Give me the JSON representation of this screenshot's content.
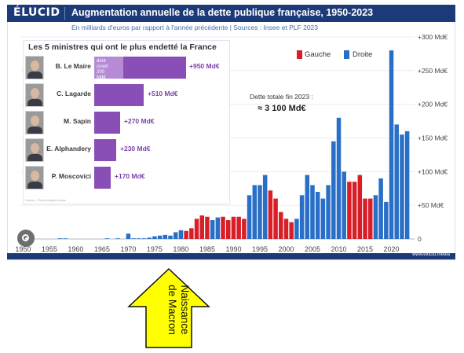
{
  "header": {
    "logo": "ÉLUCID",
    "title": "Augmentation annuelle de la dette publique française, 1950-2023",
    "subtitle": "En milliards d'euros par rapport à l'année précédente  |  Sources : Insee et PLF 2023"
  },
  "legend": {
    "left": "Gauche",
    "right": "Droite"
  },
  "total": {
    "label": "Dette totale fin 2023 :",
    "value": "≈ 3 100 Md€"
  },
  "footer": "www.elucid.media",
  "inset": {
    "title": "Les 5 ministres qui ont le plus endetté la France",
    "covid_note": "dont covid: 200 Md€",
    "source": "Source : Elucid d'après Insee",
    "ministers": [
      {
        "name": "B. Le Maire",
        "value_label": "+950 Md€",
        "value": 950,
        "covid": 200
      },
      {
        "name": "C. Lagarde",
        "value_label": "+510 Md€",
        "value": 510
      },
      {
        "name": "M. Sapin",
        "value_label": "+270 Md€",
        "value": 270
      },
      {
        "name": "E. Alphandery",
        "value_label": "+230 Md€",
        "value": 230
      },
      {
        "name": "P. Moscovici",
        "value_label": "+170 Md€",
        "value": 170
      }
    ]
  },
  "annotation": {
    "text_line1": "Naissance",
    "text_line2": "de Macron",
    "arrow_color": "#ffff00"
  },
  "colors": {
    "gauche": "#d81e27",
    "droite": "#2a6fc7",
    "header": "#1d3a78",
    "inset_bar": "#8a4fb6"
  },
  "chart_data": {
    "type": "bar",
    "title": "Augmentation annuelle de la dette publique française, 1950-2023",
    "ylabel": "Md€",
    "ylim": [
      0,
      300
    ],
    "yticks": [
      0,
      50,
      100,
      150,
      200,
      250,
      300
    ],
    "ytick_labels": [
      "0",
      "+50 Md€",
      "+100 Md€",
      "+150 Md€",
      "+200 Md€",
      "+250 Md€",
      "+300 Md€"
    ],
    "xticks": [
      1950,
      1955,
      1960,
      1965,
      1970,
      1975,
      1980,
      1985,
      1990,
      1995,
      2000,
      2005,
      2010,
      2015,
      2020
    ],
    "x": [
      1950,
      1951,
      1952,
      1953,
      1954,
      1955,
      1956,
      1957,
      1958,
      1959,
      1960,
      1961,
      1962,
      1963,
      1964,
      1965,
      1966,
      1967,
      1968,
      1969,
      1970,
      1971,
      1972,
      1973,
      1974,
      1975,
      1976,
      1977,
      1978,
      1979,
      1980,
      1981,
      1982,
      1983,
      1984,
      1985,
      1986,
      1987,
      1988,
      1989,
      1990,
      1991,
      1992,
      1993,
      1994,
      1995,
      1996,
      1997,
      1998,
      1999,
      2000,
      2001,
      2002,
      2003,
      2004,
      2005,
      2006,
      2007,
      2008,
      2009,
      2010,
      2011,
      2012,
      2013,
      2014,
      2015,
      2016,
      2017,
      2018,
      2019,
      2020,
      2021,
      2022,
      2023
    ],
    "values": [
      0,
      0,
      0,
      0,
      0,
      0,
      0,
      1,
      1,
      0,
      0,
      0,
      0,
      0,
      0,
      0,
      1,
      0,
      1,
      0,
      8,
      1,
      1,
      1,
      2,
      4,
      5,
      6,
      5,
      10,
      13,
      12,
      16,
      30,
      35,
      33,
      28,
      32,
      33,
      28,
      33,
      33,
      30,
      65,
      80,
      80,
      95,
      72,
      60,
      40,
      30,
      25,
      30,
      65,
      95,
      80,
      70,
      60,
      80,
      145,
      180,
      100,
      85,
      85,
      95,
      60,
      60,
      65,
      90,
      55,
      280,
      170,
      155,
      160
    ],
    "parties": [
      "D",
      "D",
      "D",
      "D",
      "D",
      "D",
      "D",
      "D",
      "D",
      "D",
      "D",
      "D",
      "D",
      "D",
      "D",
      "D",
      "D",
      "D",
      "D",
      "D",
      "D",
      "D",
      "D",
      "D",
      "D",
      "D",
      "D",
      "D",
      "D",
      "D",
      "D",
      "G",
      "G",
      "G",
      "G",
      "G",
      "D",
      "D",
      "G",
      "G",
      "G",
      "G",
      "G",
      "D",
      "D",
      "D",
      "D",
      "G",
      "G",
      "G",
      "G",
      "G",
      "D",
      "D",
      "D",
      "D",
      "D",
      "D",
      "D",
      "D",
      "D",
      "D",
      "G",
      "G",
      "G",
      "G",
      "G",
      "D",
      "D",
      "D",
      "D",
      "D",
      "D",
      "D"
    ]
  }
}
